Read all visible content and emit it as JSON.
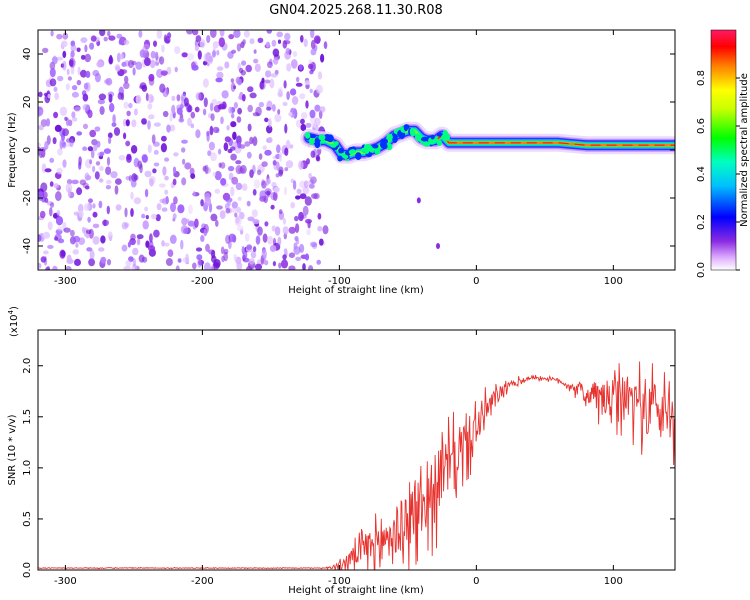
{
  "figure": {
    "title": "GN04.2025.268.11.30.R08"
  },
  "chart_data": [
    {
      "type": "heatmap",
      "xlabel": "Height of straight line (km)",
      "ylabel": "Frequency (Hz)",
      "xlim": [
        -320,
        145
      ],
      "ylim": [
        -50,
        50
      ],
      "xticks": [
        -300,
        -200,
        -100,
        0,
        100
      ],
      "yticks": [
        -40,
        -20,
        0,
        20,
        40
      ],
      "grid": false,
      "colorbar": {
        "label": "Normalized spectral amplitude",
        "range": [
          0,
          1
        ],
        "ticks": [
          0.0,
          0.2,
          0.4,
          0.6,
          0.8
        ],
        "tick_labels": [
          "0.0",
          "0.2",
          "0.4",
          "0.6",
          "0.8"
        ],
        "colormap": "rainbow"
      },
      "noise_region": {
        "x": [
          -320,
          -120
        ],
        "y": [
          -50,
          50
        ],
        "level": 0.12
      },
      "ridge": [
        [
          -122,
          5
        ],
        [
          -115,
          4
        ],
        [
          -110,
          4
        ],
        [
          -103,
          2
        ],
        [
          -98,
          -2
        ],
        [
          -93,
          -2
        ],
        [
          -88,
          -1
        ],
        [
          -82,
          -1
        ],
        [
          -77,
          0
        ],
        [
          -72,
          1
        ],
        [
          -66,
          3
        ],
        [
          -60,
          6
        ],
        [
          -55,
          7
        ],
        [
          -50,
          8
        ],
        [
          -45,
          8
        ],
        [
          -40,
          5
        ],
        [
          -36,
          4
        ],
        [
          -30,
          4
        ],
        [
          -25,
          6
        ],
        [
          -20,
          3
        ],
        [
          -10,
          3
        ],
        [
          0,
          3
        ],
        [
          20,
          3
        ],
        [
          40,
          3
        ],
        [
          60,
          3
        ],
        [
          80,
          2
        ],
        [
          100,
          2
        ],
        [
          120,
          2
        ],
        [
          145,
          2
        ]
      ],
      "isolated_blips": [
        [
          -42,
          -21
        ],
        [
          -28,
          -40
        ]
      ]
    },
    {
      "type": "line",
      "xlabel": "Height of straight line (km)",
      "ylabel": "SNR (10 * v/v)",
      "y_exponent_label": "(x10",
      "y_exponent_power": "4",
      "y_exponent_close": ")",
      "xlim": [
        -320,
        145
      ],
      "ylim": [
        0,
        2.35
      ],
      "xticks": [
        -300,
        -200,
        -100,
        0,
        100
      ],
      "yticks": [
        0.0,
        0.5,
        1.0,
        1.5,
        2.0
      ],
      "ytick_labels": [
        "0.0",
        "0.5",
        "1.0",
        "1.5",
        "2.0"
      ],
      "grid": false,
      "series": [
        {
          "color": "#e8322e",
          "envelope_x": [
            -320,
            -110,
            -100,
            -90,
            -80,
            -70,
            -60,
            -50,
            -40,
            -30,
            -20,
            -10,
            0,
            10,
            20,
            30,
            40,
            50,
            60,
            70,
            80,
            90,
            100,
            110,
            120,
            130,
            145
          ],
          "envelope_y": [
            0.02,
            0.02,
            0.05,
            0.15,
            0.25,
            0.32,
            0.42,
            0.55,
            0.7,
            0.9,
            1.1,
            1.25,
            1.45,
            1.65,
            1.78,
            1.85,
            1.89,
            1.88,
            1.86,
            1.8,
            1.74,
            1.72,
            1.7,
            1.72,
            1.7,
            1.65,
            1.6
          ],
          "noise_amplitude": [
            0.005,
            0.005,
            0.06,
            0.15,
            0.25,
            0.3,
            0.38,
            0.45,
            0.55,
            0.5,
            0.45,
            0.35,
            0.3,
            0.18,
            0.08,
            0.05,
            0.03,
            0.02,
            0.03,
            0.06,
            0.15,
            0.25,
            0.35,
            0.38,
            0.4,
            0.42,
            0.45
          ]
        }
      ]
    }
  ]
}
